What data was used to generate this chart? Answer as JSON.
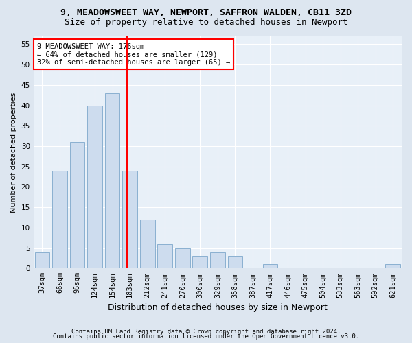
{
  "title1": "9, MEADOWSWEET WAY, NEWPORT, SAFFRON WALDEN, CB11 3ZD",
  "title2": "Size of property relative to detached houses in Newport",
  "xlabel": "Distribution of detached houses by size in Newport",
  "ylabel": "Number of detached properties",
  "categories": [
    "37sqm",
    "66sqm",
    "95sqm",
    "124sqm",
    "154sqm",
    "183sqm",
    "212sqm",
    "241sqm",
    "270sqm",
    "300sqm",
    "329sqm",
    "358sqm",
    "387sqm",
    "417sqm",
    "446sqm",
    "475sqm",
    "504sqm",
    "533sqm",
    "563sqm",
    "592sqm",
    "621sqm"
  ],
  "values": [
    4,
    24,
    31,
    40,
    43,
    24,
    12,
    6,
    5,
    3,
    4,
    3,
    0,
    1,
    0,
    0,
    0,
    0,
    0,
    0,
    1
  ],
  "bar_color": "#cddcee",
  "bar_edge_color": "#8ab0d0",
  "vline_x_idx": 4.82,
  "vline_color": "red",
  "annotation_line1": "9 MEADOWSWEET WAY: 176sqm",
  "annotation_line2": "← 64% of detached houses are smaller (129)",
  "annotation_line3": "32% of semi-detached houses are larger (65) →",
  "annotation_box_color": "red",
  "ylim": [
    0,
    57
  ],
  "yticks": [
    0,
    5,
    10,
    15,
    20,
    25,
    30,
    35,
    40,
    45,
    50,
    55
  ],
  "footer1": "Contains HM Land Registry data © Crown copyright and database right 2024.",
  "footer2": "Contains public sector information licensed under the Open Government Licence v3.0.",
  "bg_color": "#dde6f0",
  "plot_bg_color": "#e8f0f8",
  "title1_fontsize": 9.5,
  "title2_fontsize": 9,
  "ylabel_fontsize": 8,
  "xlabel_fontsize": 9,
  "tick_fontsize": 7.5,
  "footer_fontsize": 6.5
}
